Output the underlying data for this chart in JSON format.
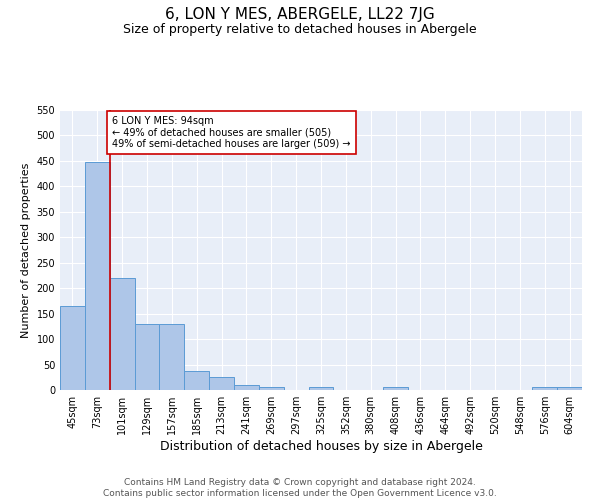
{
  "title": "6, LON Y MES, ABERGELE, LL22 7JG",
  "subtitle": "Size of property relative to detached houses in Abergele",
  "xlabel": "Distribution of detached houses by size in Abergele",
  "ylabel": "Number of detached properties",
  "categories": [
    "45sqm",
    "73sqm",
    "101sqm",
    "129sqm",
    "157sqm",
    "185sqm",
    "213sqm",
    "241sqm",
    "269sqm",
    "297sqm",
    "325sqm",
    "352sqm",
    "380sqm",
    "408sqm",
    "436sqm",
    "464sqm",
    "492sqm",
    "520sqm",
    "548sqm",
    "576sqm",
    "604sqm"
  ],
  "values": [
    165,
    447,
    220,
    130,
    130,
    37,
    25,
    10,
    5,
    0,
    5,
    0,
    0,
    5,
    0,
    0,
    0,
    0,
    0,
    5,
    5
  ],
  "bar_color": "#aec6e8",
  "bar_edge_color": "#5b9bd5",
  "red_line_index": 2,
  "red_line_color": "#cc0000",
  "annotation_text": "6 LON Y MES: 94sqm\n← 49% of detached houses are smaller (505)\n49% of semi-detached houses are larger (509) →",
  "annotation_box_color": "white",
  "annotation_box_edge": "#cc0000",
  "ylim": [
    0,
    550
  ],
  "yticks": [
    0,
    50,
    100,
    150,
    200,
    250,
    300,
    350,
    400,
    450,
    500,
    550
  ],
  "background_color": "#e8eef8",
  "grid_color": "white",
  "footer": "Contains HM Land Registry data © Crown copyright and database right 2024.\nContains public sector information licensed under the Open Government Licence v3.0.",
  "title_fontsize": 11,
  "subtitle_fontsize": 9,
  "xlabel_fontsize": 9,
  "ylabel_fontsize": 8,
  "tick_fontsize": 7,
  "footer_fontsize": 6.5
}
